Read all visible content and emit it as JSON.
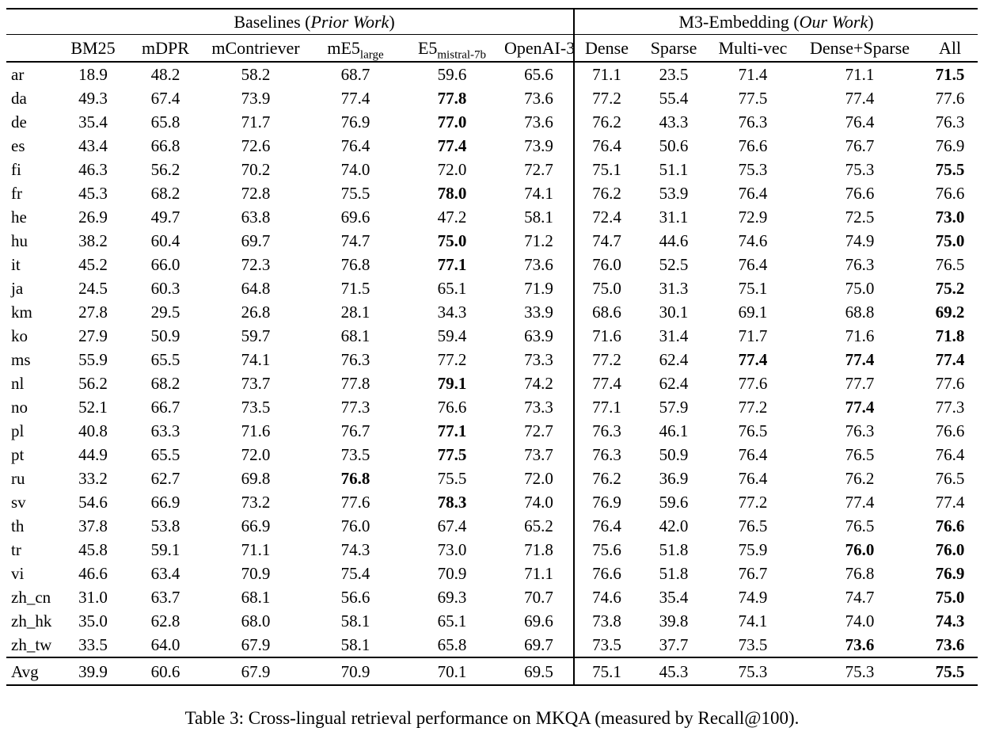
{
  "colors": {
    "text": "#000000",
    "background": "#ffffff",
    "rule": "#000000"
  },
  "caption": "Table 3: Cross-lingual retrieval performance on MKQA (measured by Recall@100).",
  "table": {
    "groups": [
      {
        "prefix": "Baselines (",
        "italic": "Prior Work",
        "suffix": ")"
      },
      {
        "prefix": "M3-Embedding (",
        "italic": "Our Work",
        "suffix": ")"
      }
    ],
    "columns": [
      {
        "main": "",
        "sub": ""
      },
      {
        "main": "BM25",
        "sub": ""
      },
      {
        "main": "mDPR",
        "sub": ""
      },
      {
        "main": "mContriever",
        "sub": ""
      },
      {
        "main": "mE5",
        "sub": "large"
      },
      {
        "main": "E5",
        "sub": "mistral-7b"
      },
      {
        "main": "OpenAI-3",
        "sub": ""
      },
      {
        "main": "Dense",
        "sub": ""
      },
      {
        "main": "Sparse",
        "sub": ""
      },
      {
        "main": "Multi-vec",
        "sub": ""
      },
      {
        "main": "Dense+Sparse",
        "sub": ""
      },
      {
        "main": "All",
        "sub": ""
      }
    ],
    "rows": [
      {
        "lang": "ar",
        "values": [
          "18.9",
          "48.2",
          "58.2",
          "68.7",
          "59.6",
          "65.6",
          "71.1",
          "23.5",
          "71.4",
          "71.1",
          "71.5"
        ],
        "bold": [
          10
        ]
      },
      {
        "lang": "da",
        "values": [
          "49.3",
          "67.4",
          "73.9",
          "77.4",
          "77.8",
          "73.6",
          "77.2",
          "55.4",
          "77.5",
          "77.4",
          "77.6"
        ],
        "bold": [
          4
        ]
      },
      {
        "lang": "de",
        "values": [
          "35.4",
          "65.8",
          "71.7",
          "76.9",
          "77.0",
          "73.6",
          "76.2",
          "43.3",
          "76.3",
          "76.4",
          "76.3"
        ],
        "bold": [
          4
        ]
      },
      {
        "lang": "es",
        "values": [
          "43.4",
          "66.8",
          "72.6",
          "76.4",
          "77.4",
          "73.9",
          "76.4",
          "50.6",
          "76.6",
          "76.7",
          "76.9"
        ],
        "bold": [
          4
        ]
      },
      {
        "lang": "fi",
        "values": [
          "46.3",
          "56.2",
          "70.2",
          "74.0",
          "72.0",
          "72.7",
          "75.1",
          "51.1",
          "75.3",
          "75.3",
          "75.5"
        ],
        "bold": [
          10
        ]
      },
      {
        "lang": "fr",
        "values": [
          "45.3",
          "68.2",
          "72.8",
          "75.5",
          "78.0",
          "74.1",
          "76.2",
          "53.9",
          "76.4",
          "76.6",
          "76.6"
        ],
        "bold": [
          4
        ]
      },
      {
        "lang": "he",
        "values": [
          "26.9",
          "49.7",
          "63.8",
          "69.6",
          "47.2",
          "58.1",
          "72.4",
          "31.1",
          "72.9",
          "72.5",
          "73.0"
        ],
        "bold": [
          10
        ]
      },
      {
        "lang": "hu",
        "values": [
          "38.2",
          "60.4",
          "69.7",
          "74.7",
          "75.0",
          "71.2",
          "74.7",
          "44.6",
          "74.6",
          "74.9",
          "75.0"
        ],
        "bold": [
          4,
          10
        ]
      },
      {
        "lang": "it",
        "values": [
          "45.2",
          "66.0",
          "72.3",
          "76.8",
          "77.1",
          "73.6",
          "76.0",
          "52.5",
          "76.4",
          "76.3",
          "76.5"
        ],
        "bold": [
          4
        ]
      },
      {
        "lang": "ja",
        "values": [
          "24.5",
          "60.3",
          "64.8",
          "71.5",
          "65.1",
          "71.9",
          "75.0",
          "31.3",
          "75.1",
          "75.0",
          "75.2"
        ],
        "bold": [
          10
        ]
      },
      {
        "lang": "km",
        "values": [
          "27.8",
          "29.5",
          "26.8",
          "28.1",
          "34.3",
          "33.9",
          "68.6",
          "30.1",
          "69.1",
          "68.8",
          "69.2"
        ],
        "bold": [
          10
        ]
      },
      {
        "lang": "ko",
        "values": [
          "27.9",
          "50.9",
          "59.7",
          "68.1",
          "59.4",
          "63.9",
          "71.6",
          "31.4",
          "71.7",
          "71.6",
          "71.8"
        ],
        "bold": [
          10
        ]
      },
      {
        "lang": "ms",
        "values": [
          "55.9",
          "65.5",
          "74.1",
          "76.3",
          "77.2",
          "73.3",
          "77.2",
          "62.4",
          "77.4",
          "77.4",
          "77.4"
        ],
        "bold": [
          8,
          9,
          10
        ]
      },
      {
        "lang": "nl",
        "values": [
          "56.2",
          "68.2",
          "73.7",
          "77.8",
          "79.1",
          "74.2",
          "77.4",
          "62.4",
          "77.6",
          "77.7",
          "77.6"
        ],
        "bold": [
          4
        ]
      },
      {
        "lang": "no",
        "values": [
          "52.1",
          "66.7",
          "73.5",
          "77.3",
          "76.6",
          "73.3",
          "77.1",
          "57.9",
          "77.2",
          "77.4",
          "77.3"
        ],
        "bold": [
          9
        ]
      },
      {
        "lang": "pl",
        "values": [
          "40.8",
          "63.3",
          "71.6",
          "76.7",
          "77.1",
          "72.7",
          "76.3",
          "46.1",
          "76.5",
          "76.3",
          "76.6"
        ],
        "bold": [
          4
        ]
      },
      {
        "lang": "pt",
        "values": [
          "44.9",
          "65.5",
          "72.0",
          "73.5",
          "77.5",
          "73.7",
          "76.3",
          "50.9",
          "76.4",
          "76.5",
          "76.4"
        ],
        "bold": [
          4
        ]
      },
      {
        "lang": "ru",
        "values": [
          "33.2",
          "62.7",
          "69.8",
          "76.8",
          "75.5",
          "72.0",
          "76.2",
          "36.9",
          "76.4",
          "76.2",
          "76.5"
        ],
        "bold": [
          3
        ]
      },
      {
        "lang": "sv",
        "values": [
          "54.6",
          "66.9",
          "73.2",
          "77.6",
          "78.3",
          "74.0",
          "76.9",
          "59.6",
          "77.2",
          "77.4",
          "77.4"
        ],
        "bold": [
          4
        ]
      },
      {
        "lang": "th",
        "values": [
          "37.8",
          "53.8",
          "66.9",
          "76.0",
          "67.4",
          "65.2",
          "76.4",
          "42.0",
          "76.5",
          "76.5",
          "76.6"
        ],
        "bold": [
          10
        ]
      },
      {
        "lang": "tr",
        "values": [
          "45.8",
          "59.1",
          "71.1",
          "74.3",
          "73.0",
          "71.8",
          "75.6",
          "51.8",
          "75.9",
          "76.0",
          "76.0"
        ],
        "bold": [
          9,
          10
        ]
      },
      {
        "lang": "vi",
        "values": [
          "46.6",
          "63.4",
          "70.9",
          "75.4",
          "70.9",
          "71.1",
          "76.6",
          "51.8",
          "76.7",
          "76.8",
          "76.9"
        ],
        "bold": [
          10
        ]
      },
      {
        "lang": "zh_cn",
        "values": [
          "31.0",
          "63.7",
          "68.1",
          "56.6",
          "69.3",
          "70.7",
          "74.6",
          "35.4",
          "74.9",
          "74.7",
          "75.0"
        ],
        "bold": [
          10
        ]
      },
      {
        "lang": "zh_hk",
        "values": [
          "35.0",
          "62.8",
          "68.0",
          "58.1",
          "65.1",
          "69.6",
          "73.8",
          "39.8",
          "74.1",
          "74.0",
          "74.3"
        ],
        "bold": [
          10
        ]
      },
      {
        "lang": "zh_tw",
        "values": [
          "33.5",
          "64.0",
          "67.9",
          "58.1",
          "65.8",
          "69.7",
          "73.5",
          "37.7",
          "73.5",
          "73.6",
          "73.6"
        ],
        "bold": [
          9,
          10
        ]
      }
    ],
    "avg_row": {
      "lang": "Avg",
      "values": [
        "39.9",
        "60.6",
        "67.9",
        "70.9",
        "70.1",
        "69.5",
        "75.1",
        "45.3",
        "75.3",
        "75.3",
        "75.5"
      ],
      "bold": [
        10
      ]
    }
  }
}
